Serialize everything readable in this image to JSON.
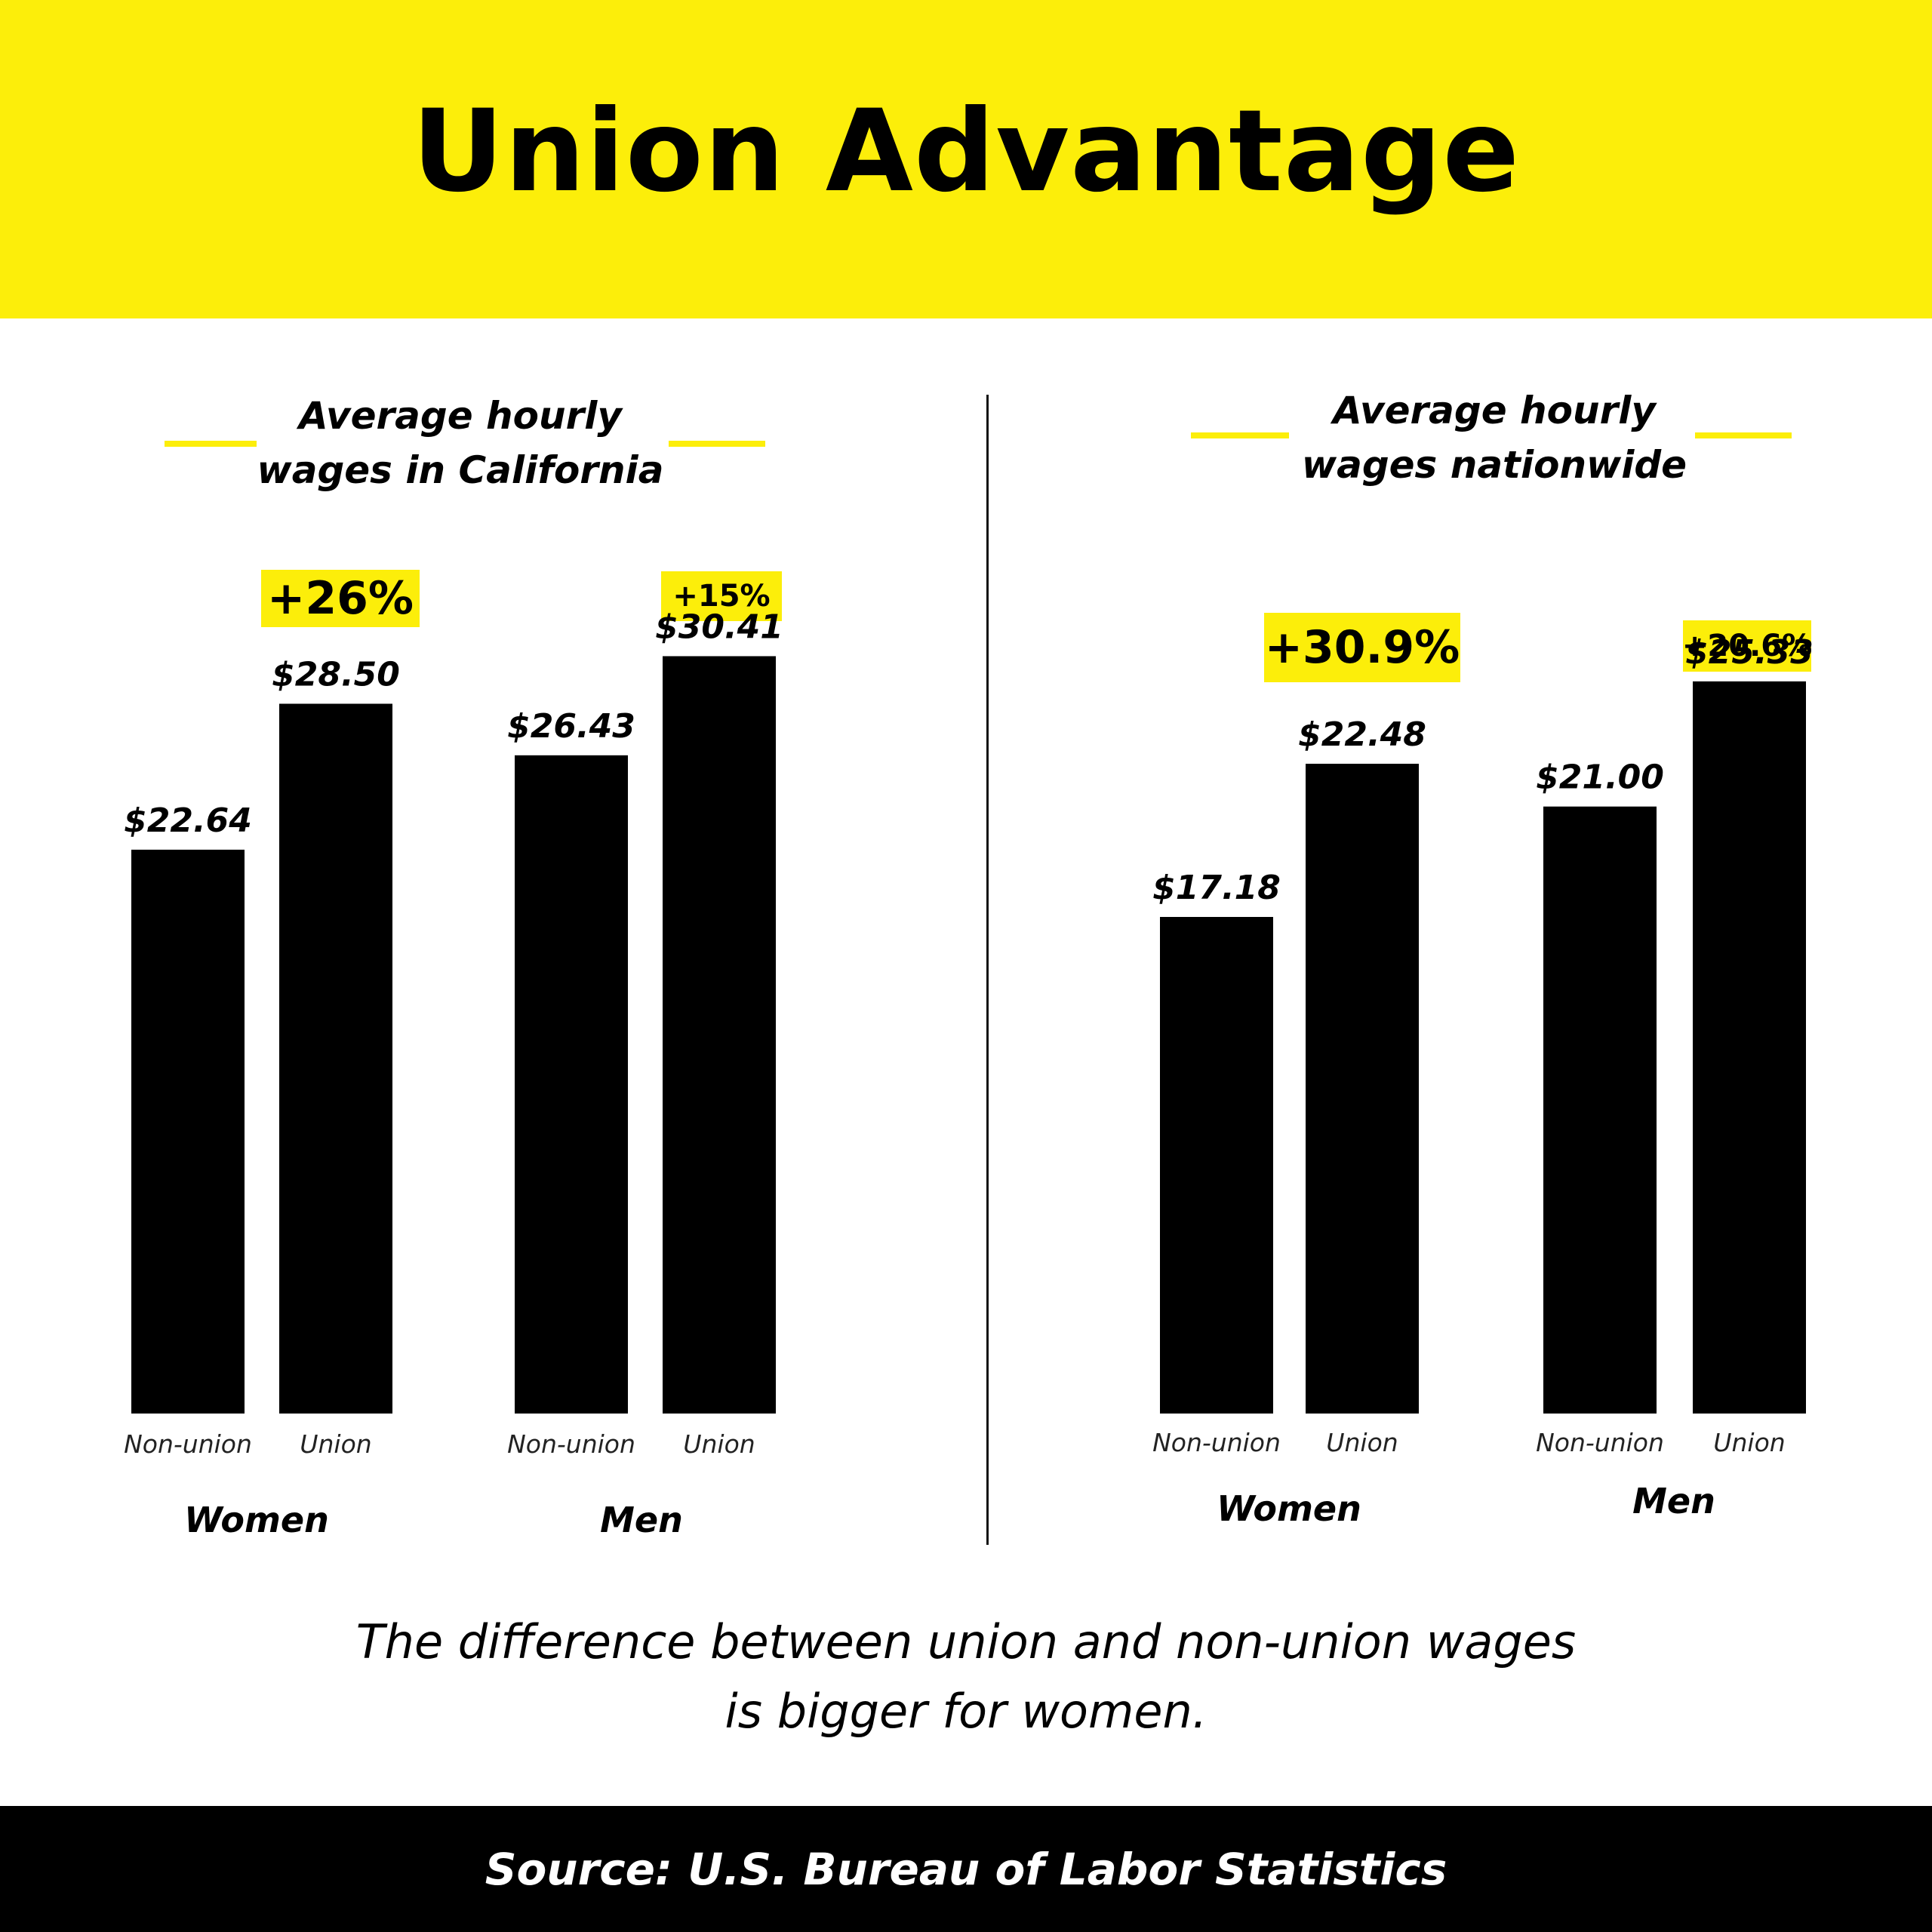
{
  "title": "Union Advantage",
  "caption_line1": "The difference between union and non-union wages",
  "caption_line2": "is bigger for women.",
  "source": "Source: U.S. Bureau of Labor Statistics",
  "colors": {
    "accent": "#fcee0a",
    "bar": "#000000",
    "text": "#000000"
  },
  "panels": [
    {
      "title_line1": "Average hourly",
      "title_line2": "wages in California",
      "groups": [
        {
          "label": "Women",
          "change": "+26%",
          "bars": [
            {
              "label": "Non-union",
              "value_label": "$22.64"
            },
            {
              "label": "Union",
              "value_label": "$28.50"
            }
          ]
        },
        {
          "label": "Men",
          "change": "+15%",
          "bars": [
            {
              "label": "Non-union",
              "value_label": "$26.43"
            },
            {
              "label": "Union",
              "value_label": "$30.41"
            }
          ]
        }
      ]
    },
    {
      "title_line1": "Average hourly",
      "title_line2": "wages nationwide",
      "groups": [
        {
          "label": "Women",
          "change": "+30.9%",
          "bars": [
            {
              "label": "Non-union",
              "value_label": "$17.18"
            },
            {
              "label": "Union",
              "value_label": "$22.48"
            }
          ]
        },
        {
          "label": "Men",
          "change": "+20.6%",
          "bars": [
            {
              "label": "Non-union",
              "value_label": "$21.00"
            },
            {
              "label": "Union",
              "value_label": "$25.33"
            }
          ]
        }
      ]
    }
  ],
  "chart_data": [
    {
      "type": "bar",
      "title": "Average hourly wages in California",
      "categories": [
        "Women",
        "Men"
      ],
      "series": [
        {
          "name": "Non-union",
          "values": [
            22.64,
            26.43
          ]
        },
        {
          "name": "Union",
          "values": [
            28.5,
            30.41
          ]
        }
      ],
      "annotations": [
        "+26%",
        "+15%"
      ],
      "grid": false
    },
    {
      "type": "bar",
      "title": "Average hourly wages nationwide",
      "categories": [
        "Women",
        "Men"
      ],
      "series": [
        {
          "name": "Non-union",
          "values": [
            17.18,
            21.0
          ]
        },
        {
          "name": "Union",
          "values": [
            22.48,
            25.33
          ]
        }
      ],
      "annotations": [
        "+30.9%",
        "+20.6%"
      ],
      "grid": false
    }
  ]
}
